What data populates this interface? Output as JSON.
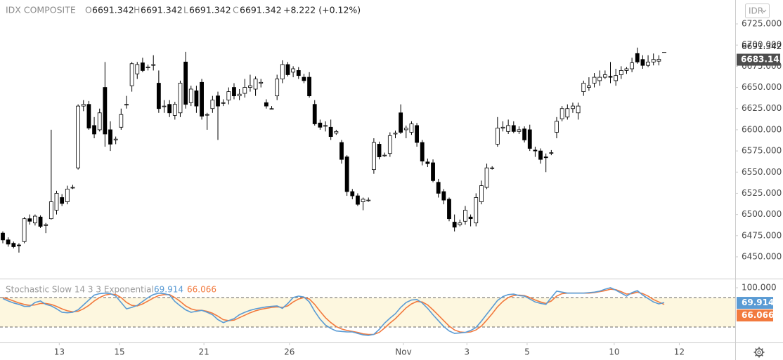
{
  "header": {
    "symbol": "IDX COMPOSITE",
    "ohlc_labels": [
      "O",
      "H",
      "L",
      "C"
    ],
    "change": "+8.222 (+0.12%)",
    "currency": "IDR"
  },
  "chart_data": [
    {
      "type": "candlestick",
      "open": [
        6478,
        6470,
        6466,
        6464,
        6468,
        6495,
        6490,
        6497,
        6487,
        6495,
        6505,
        6520,
        6515,
        6532,
        6555,
        6628,
        6630,
        6605,
        6600,
        6650,
        6600,
        6588,
        6603,
        6630,
        6652,
        6666,
        6679,
        6674,
        6676,
        6655,
        6628,
        6630,
        6617,
        6620,
        6680,
        6632,
        6646,
        6656,
        6618,
        6625,
        6640,
        6632,
        6635,
        6650,
        6640,
        6643,
        6650,
        6648,
        6655,
        6632,
        6625,
        6640,
        6660,
        6677,
        6668,
        6670,
        6662,
        6662,
        6630,
        6608,
        6605,
        6603,
        6596,
        6585,
        6568,
        6527,
        6522,
        6515,
        6517,
        6553,
        6583,
        6570,
        6572,
        6595,
        6620,
        6600,
        6597,
        6605,
        6585,
        6562,
        6561,
        6538,
        6527,
        6518,
        6491,
        6488,
        6492,
        6497,
        6490,
        6515,
        6532,
        6555,
        6583,
        6602,
        6598,
        6605,
        6598,
        6601,
        6600,
        6576,
        6575,
        6568,
        6573,
        6597,
        6613,
        6615,
        6625,
        6620,
        6645,
        6650,
        6655,
        6658,
        6662,
        6663,
        6658,
        6665,
        6670,
        6672,
        6690,
        6683,
        6676,
        6680,
        6681,
        6691.342
      ],
      "high": [
        6480,
        6473,
        6468,
        6466,
        6497,
        6500,
        6500,
        6499,
        6490,
        6600,
        6528,
        6524,
        6534,
        6535,
        6630,
        6635,
        6634,
        6615,
        6625,
        6680,
        6610,
        6592,
        6625,
        6640,
        6680,
        6680,
        6685,
        6677,
        6688,
        6670,
        6635,
        6635,
        6633,
        6658,
        6692,
        6652,
        6652,
        6660,
        6620,
        6640,
        6645,
        6636,
        6650,
        6655,
        6648,
        6660,
        6665,
        6663,
        6660,
        6636,
        6628,
        6665,
        6682,
        6680,
        6675,
        6674,
        6666,
        6668,
        6635,
        6612,
        6610,
        6612,
        6600,
        6588,
        6570,
        6530,
        6525,
        6520,
        6520,
        6590,
        6586,
        6573,
        6597,
        6599,
        6630,
        6605,
        6610,
        6608,
        6588,
        6566,
        6565,
        6542,
        6530,
        6520,
        6500,
        6494,
        6510,
        6500,
        6525,
        6540,
        6560,
        6557,
        6615,
        6610,
        6612,
        6610,
        6604,
        6604,
        6606,
        6580,
        6578,
        6572,
        6576,
        6615,
        6628,
        6630,
        6632,
        6632,
        6658,
        6662,
        6667,
        6670,
        6670,
        6680,
        6672,
        6675,
        6674,
        6685,
        6697,
        6688,
        6688,
        6690,
        6688,
        6691.342
      ],
      "low": [
        6466,
        6462,
        6460,
        6455,
        6466,
        6488,
        6487,
        6484,
        6478,
        6494,
        6500,
        6510,
        6512,
        6530,
        6553,
        6622,
        6600,
        6590,
        6598,
        6580,
        6575,
        6583,
        6600,
        6625,
        6645,
        6660,
        6668,
        6670,
        6670,
        6620,
        6620,
        6615,
        6612,
        6615,
        6625,
        6628,
        6620,
        6612,
        6600,
        6620,
        6588,
        6628,
        6630,
        6636,
        6635,
        6638,
        6645,
        6640,
        6650,
        6625,
        6624,
        6635,
        6655,
        6663,
        6662,
        6660,
        6655,
        6638,
        6605,
        6600,
        6598,
        6588,
        6594,
        6560,
        6522,
        6518,
        6510,
        6505,
        6515,
        6548,
        6565,
        6568,
        6568,
        6590,
        6595,
        6590,
        6594,
        6580,
        6558,
        6556,
        6538,
        6520,
        6512,
        6492,
        6480,
        6486,
        6488,
        6486,
        6486,
        6512,
        6530,
        6553,
        6580,
        6598,
        6595,
        6596,
        6595,
        6585,
        6575,
        6568,
        6560,
        6550,
        6570,
        6590,
        6610,
        6612,
        6620,
        6612,
        6640,
        6646,
        6650,
        6652,
        6660,
        6655,
        6652,
        6660,
        6666,
        6668,
        6678,
        6672,
        6674,
        6676,
        6676,
        6691.342
      ],
      "close": [
        6470,
        6465,
        6462,
        6463,
        6495,
        6492,
        6498,
        6486,
        6488,
        6515,
        6525,
        6513,
        6530,
        6532,
        6628,
        6630,
        6602,
        6595,
        6620,
        6595,
        6583,
        6589,
        6618,
        6630,
        6678,
        6677,
        6670,
        6674,
        6677,
        6625,
        6628,
        6620,
        6630,
        6655,
        6630,
        6648,
        6628,
        6616,
        6618,
        6635,
        6628,
        6632,
        6645,
        6640,
        6642,
        6650,
        6652,
        6660,
        6656,
        6628,
        6625,
        6660,
        6677,
        6665,
        6672,
        6664,
        6658,
        6640,
        6607,
        6603,
        6605,
        6592,
        6598,
        6565,
        6527,
        6522,
        6512,
        6518,
        6517,
        6585,
        6568,
        6570,
        6593,
        6596,
        6597,
        6602,
        6607,
        6585,
        6563,
        6560,
        6540,
        6525,
        6517,
        6495,
        6485,
        6490,
        6505,
        6495,
        6520,
        6534,
        6555,
        6555,
        6602,
        6603,
        6605,
        6598,
        6600,
        6588,
        6578,
        6575,
        6565,
        6567,
        6573,
        6610,
        6625,
        6625,
        6628,
        6628,
        6655,
        6652,
        6662,
        6662,
        6665,
        6662,
        6664,
        6670,
        6672,
        6679,
        6680,
        6676,
        6680,
        6683,
        6683.145,
        6691.342
      ],
      "xlim": [
        -0.523,
        136.2
      ],
      "xticks": [
        {
          "value": 10.5,
          "label": "13"
        },
        {
          "value": 21.7,
          "label": "15"
        },
        {
          "value": 37.4,
          "label": "21"
        },
        {
          "value": 53.3,
          "label": "26"
        },
        {
          "value": 74.5,
          "label": "Nov"
        },
        {
          "value": 86.3,
          "label": "3"
        },
        {
          "value": 97.5,
          "label": "5"
        },
        {
          "value": 113.7,
          "label": "10"
        },
        {
          "value": 125.8,
          "label": "12"
        }
      ],
      "ylim": [
        6424.3,
        6753.2
      ],
      "yticks": [
        {
          "value": 6725,
          "label": "6725.000"
        },
        {
          "value": 6700,
          "label": "6700.000"
        },
        {
          "value": 6675,
          "label": "6675.000"
        },
        {
          "value": 6650,
          "label": "6650.000"
        },
        {
          "value": 6625,
          "label": "6625.000"
        },
        {
          "value": 6600,
          "label": "6600.000"
        },
        {
          "value": 6575,
          "label": "6575.000"
        },
        {
          "value": 6550,
          "label": "6550.000"
        },
        {
          "value": 6525,
          "label": "6525.000"
        },
        {
          "value": 6500,
          "label": "6500.000"
        },
        {
          "value": 6475,
          "label": "6475.000"
        },
        {
          "value": 6450,
          "label": "6450.000"
        }
      ],
      "up_color": "#ffffff",
      "down_color": "#000000",
      "grid": false
    },
    {
      "type": "line",
      "title": "Stochastic Slow 14 3 3 Exponential",
      "series": [
        {
          "color": "#5a9bd4",
          "values": [
            78,
            73,
            69,
            66,
            62,
            62,
            70,
            73,
            66,
            63,
            57,
            50,
            49,
            50,
            55,
            65,
            75,
            85,
            88,
            89,
            88,
            83,
            70,
            57,
            60,
            64,
            72,
            80,
            86,
            89,
            88,
            85,
            72,
            63,
            55,
            50,
            52,
            54,
            50,
            45,
            35,
            29,
            33,
            37,
            45,
            50,
            54,
            57,
            59,
            61,
            62,
            63,
            58,
            68,
            80,
            83,
            81,
            71,
            52,
            36,
            24,
            17,
            12,
            11,
            10,
            10,
            7,
            4,
            3,
            5,
            15,
            28,
            38,
            47,
            60,
            70,
            75,
            76,
            69,
            58,
            45,
            33,
            21,
            12,
            7,
            8,
            9,
            13,
            19,
            32,
            46,
            60,
            74,
            82,
            86,
            87,
            84,
            83,
            77,
            71,
            68,
            66,
            80,
            93,
            91,
            89,
            89,
            89,
            89,
            90,
            91,
            93,
            97,
            100,
            95,
            89,
            83,
            90,
            94,
            85,
            78,
            71,
            67,
            69.914
          ]
        },
        {
          "color": "#f27a3e",
          "values": [
            80,
            77,
            73,
            69,
            66,
            64,
            65,
            68,
            68,
            66,
            62,
            57,
            53,
            51,
            52,
            57,
            64,
            73,
            80,
            85,
            87,
            86,
            80,
            70,
            64,
            63,
            67,
            73,
            79,
            84,
            86,
            86,
            80,
            72,
            63,
            57,
            54,
            54,
            52,
            48,
            42,
            35,
            33,
            34,
            39,
            44,
            49,
            53,
            56,
            58,
            60,
            61,
            60,
            63,
            71,
            77,
            80,
            77,
            66,
            52,
            39,
            29,
            21,
            16,
            13,
            11,
            9,
            6,
            5,
            5,
            9,
            18,
            28,
            37,
            48,
            59,
            67,
            72,
            71,
            65,
            55,
            44,
            33,
            22,
            14,
            10,
            9,
            10,
            14,
            22,
            34,
            47,
            61,
            72,
            80,
            84,
            85,
            84,
            80,
            75,
            71,
            68,
            73,
            83,
            88,
            89,
            89,
            89,
            89,
            89,
            90,
            92,
            94,
            97,
            96,
            92,
            87,
            88,
            91,
            88,
            83,
            76,
            71,
            66.066
          ]
        }
      ],
      "ylim": [
        -11.43,
        117.14
      ],
      "yticks": [
        {
          "value": 100,
          "label": "100.000"
        }
      ],
      "bands": [
        80,
        20
      ],
      "band_color": "#fdf7df"
    }
  ]
}
